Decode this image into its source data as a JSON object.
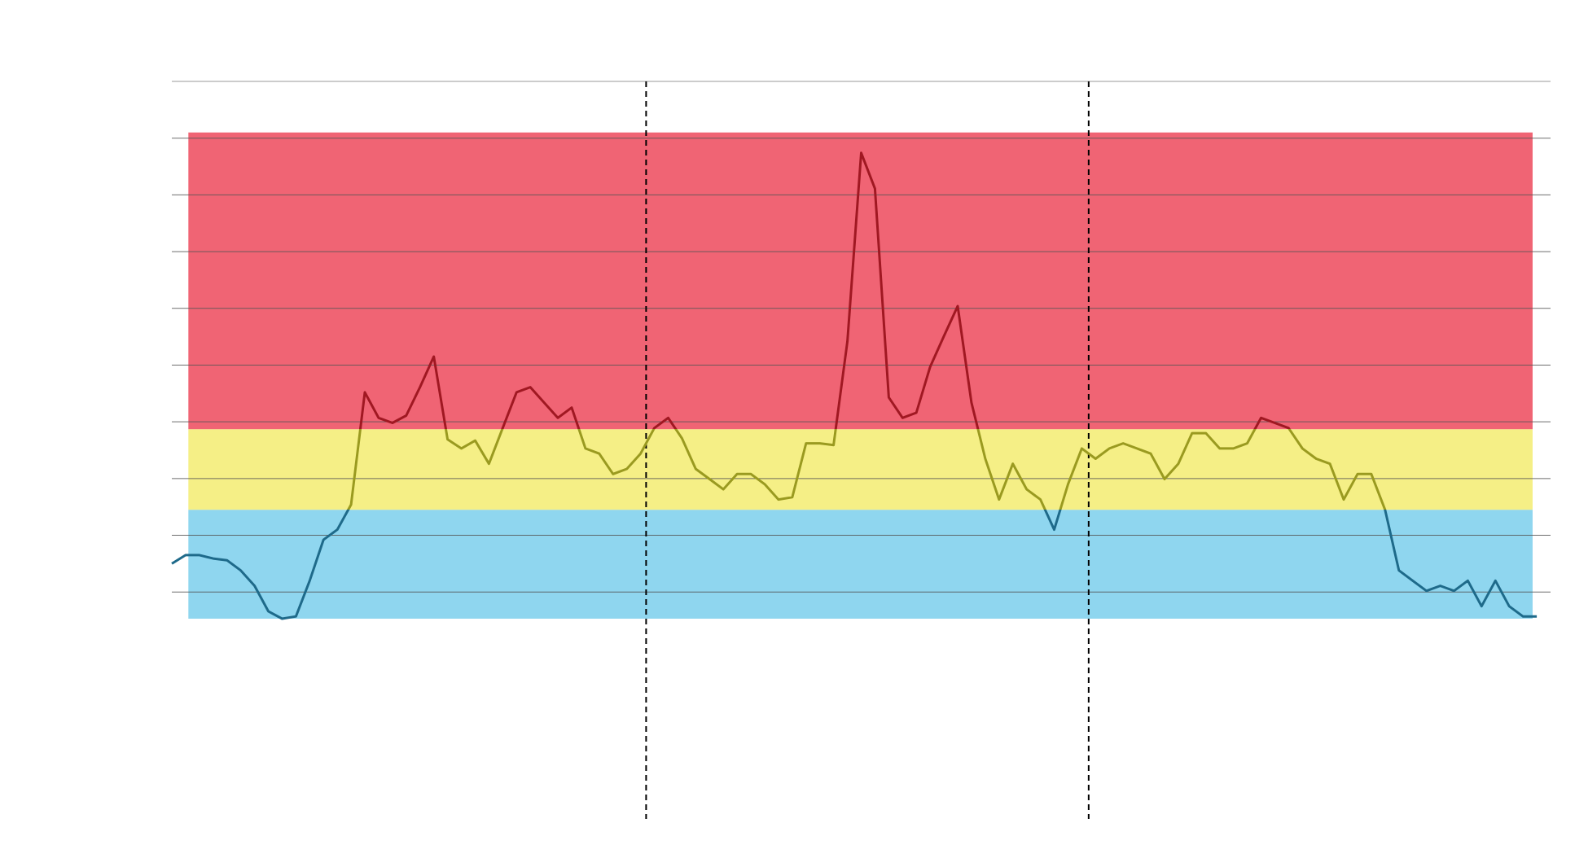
{
  "chart_data": {
    "type": "line",
    "x": [
      0,
      1,
      2,
      3,
      4,
      5,
      6,
      7,
      8,
      9,
      10,
      11,
      12,
      13,
      14,
      15,
      16,
      17,
      18,
      19,
      20,
      21,
      22,
      23,
      24,
      25,
      26,
      27,
      28,
      29,
      30,
      31,
      32,
      33,
      34,
      35,
      36,
      37,
      38,
      39,
      40,
      41,
      42,
      43,
      44,
      45,
      46,
      47,
      48,
      49,
      50,
      51,
      52,
      53,
      54,
      55,
      56,
      57,
      58,
      59,
      60,
      61,
      62,
      63,
      64,
      65,
      66,
      67,
      68,
      69,
      70,
      71,
      72,
      73,
      74,
      75,
      76,
      77,
      78,
      79,
      80,
      81,
      82,
      83,
      84,
      85,
      86,
      87,
      88,
      89,
      90,
      91,
      92,
      93,
      94,
      95,
      96,
      97,
      98,
      99
    ],
    "values": [
      0.5,
      0.65,
      0.65,
      0.59,
      0.56,
      0.38,
      0.11,
      -0.34,
      -0.47,
      -0.43,
      0.2,
      0.92,
      1.1,
      1.54,
      3.52,
      3.07,
      2.98,
      3.11,
      3.61,
      4.15,
      2.69,
      2.53,
      2.67,
      2.26,
      2.89,
      3.52,
      3.61,
      3.34,
      3.07,
      3.25,
      2.53,
      2.44,
      2.08,
      2.17,
      2.44,
      2.89,
      3.07,
      2.71,
      2.17,
      1.99,
      1.81,
      2.08,
      2.08,
      1.9,
      1.63,
      1.67,
      2.62,
      2.62,
      2.59,
      4.42,
      7.74,
      7.11,
      3.43,
      3.07,
      3.16,
      3.97,
      4.51,
      5.04,
      3.34,
      2.35,
      1.63,
      2.26,
      1.81,
      1.63,
      1.1,
      1.9,
      2.53,
      2.35,
      2.53,
      2.62,
      2.53,
      2.44,
      1.99,
      2.26,
      2.8,
      2.8,
      2.53,
      2.53,
      2.62,
      3.07,
      2.98,
      2.89,
      2.53,
      2.35,
      2.26,
      1.63,
      2.08,
      2.08,
      1.45,
      0.38,
      0.2,
      0.02,
      0.11,
      0.02,
      0.2,
      -0.25,
      0.2,
      -0.25,
      -0.43,
      -0.43
    ],
    "xlim": [
      0,
      100
    ],
    "ylim": [
      -4,
      9
    ],
    "yticks": [
      0,
      1,
      2,
      3,
      4,
      5,
      6,
      7,
      8,
      9
    ],
    "grid": true,
    "grid_color": "#555555",
    "band_xlim": [
      1.2,
      98.7
    ],
    "bands": [
      {
        "y0": -0.47,
        "y1": 1.45,
        "color": "#8fd6ef",
        "line_color": "#1e6a8a"
      },
      {
        "y0": 1.45,
        "y1": 2.87,
        "color": "#f5ef86",
        "line_color": "#9a9a20"
      },
      {
        "y0": 2.87,
        "y1": 8.1,
        "color": "#f06474",
        "line_color": "#a01822"
      }
    ],
    "vlines": [
      34.4,
      66.5
    ]
  }
}
